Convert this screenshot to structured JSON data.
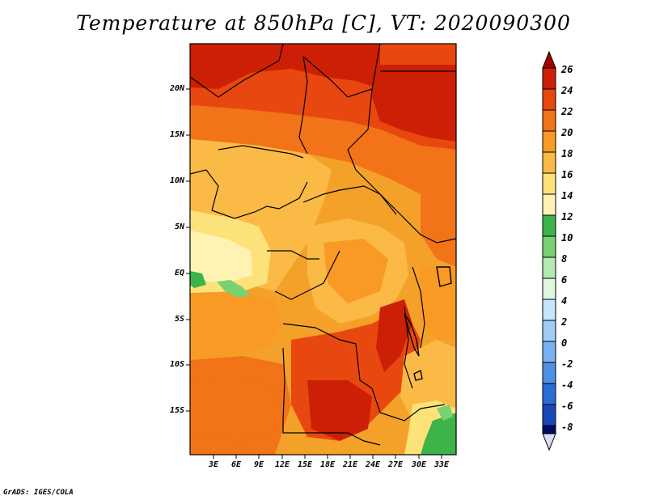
{
  "title": "Temperature at 850hPa [C], VT: 2020090300",
  "footer": "GrADS: IGES/COLA",
  "map": {
    "lat_labels": [
      "20N",
      "15N",
      "10N",
      "5N",
      "EQ",
      "5S",
      "10S",
      "15S"
    ],
    "lon_labels": [
      "3E",
      "6E",
      "9E",
      "12E",
      "15E",
      "18E",
      "21E",
      "24E",
      "27E",
      "30E",
      "33E"
    ]
  },
  "colorbar": {
    "labels": [
      "26",
      "24",
      "22",
      "20",
      "18",
      "16",
      "14",
      "12",
      "10",
      "8",
      "6",
      "4",
      "2",
      "0",
      "-2",
      "-4",
      "-6",
      "-8"
    ],
    "colors": [
      "#a50000",
      "#cd1f05",
      "#e8480f",
      "#f27318",
      "#f89a24",
      "#fbba46",
      "#fde27a",
      "#fff3b3",
      "#3cb44a",
      "#78d272",
      "#b4eab0",
      "#e0f7df",
      "#c6e4fa",
      "#a0cdf6",
      "#78b2f0",
      "#4e90e6",
      "#2b6dd6",
      "#1848b8",
      "#0d2b94",
      "#000a5e",
      "#dcdcf8"
    ]
  }
}
